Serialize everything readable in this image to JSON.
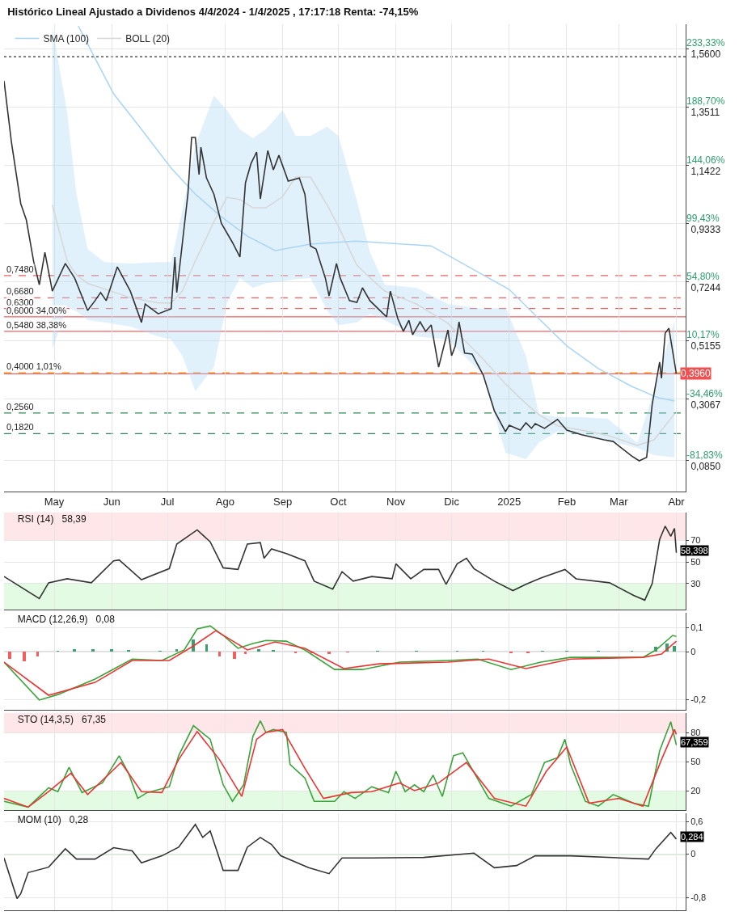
{
  "chart_data": [
    {
      "type": "line",
      "title": "Histórico Lineal Ajustado a Dividenos 4/4/2024 - 1/4/2025 , 17:17:18 Renta: -74,15%",
      "xlim": [
        "2024-04-04",
        "2025-04-06"
      ],
      "xticks": [
        {
          "value": "2024-05-01",
          "label": "May"
        },
        {
          "value": "2024-06-01",
          "label": "Jun"
        },
        {
          "value": "2024-07-01",
          "label": "Jul"
        },
        {
          "value": "2024-08-01",
          "label": "Ago"
        },
        {
          "value": "2024-09-01",
          "label": "Sep"
        },
        {
          "value": "2024-10-01",
          "label": "Oct"
        },
        {
          "value": "2024-11-01",
          "label": "Nov"
        },
        {
          "value": "2024-12-01",
          "label": "Dic"
        },
        {
          "value": "2025-01-01",
          "label": "2025"
        },
        {
          "value": "2025-02-01",
          "label": "Feb"
        },
        {
          "value": "2025-03-01",
          "label": "Mar"
        },
        {
          "value": "2025-04-01",
          "label": "Abr"
        }
      ],
      "ylim": [
        -0.025,
        1.647
      ],
      "yticks": [
        {
          "value": 0.085,
          "label": "0,0850"
        },
        {
          "value": 0.3067,
          "label": "0,3067"
        },
        {
          "value": 0.5155,
          "label": "0,5155"
        },
        {
          "value": 0.7244,
          "label": "0,7244"
        },
        {
          "value": 0.9333,
          "label": "0,9333"
        },
        {
          "value": 1.1422,
          "label": "1,1422"
        },
        {
          "value": 1.3511,
          "label": "1,3511"
        },
        {
          "value": 1.56,
          "label": "1,5600"
        }
      ],
      "y2lim": [
        -105.34,
        251.9
      ],
      "y2ticks": [
        {
          "value": -81.83,
          "label": "-81,83%"
        },
        {
          "value": -34.46,
          "label": "-34,46%"
        },
        {
          "value": 10.17,
          "label": "10,17%"
        },
        {
          "value": 54.8,
          "label": "54,80%"
        },
        {
          "value": 99.43,
          "label": "99,43%"
        },
        {
          "value": 144.06,
          "label": "144,06%"
        },
        {
          "value": 188.7,
          "label": "188,70%"
        },
        {
          "value": 233.33,
          "label": "233,33%"
        }
      ],
      "grid": true,
      "legend": "top left",
      "series": [
        {
          "name": "BOLL (20)",
          "color": "#d6d6d6",
          "x": [
            "2024-04-30",
            "2024-05-08",
            "2024-05-13",
            "2024-05-19",
            "2024-05-28",
            "2024-06-11",
            "2024-06-26",
            "2024-07-03",
            "2024-07-09",
            "2024-07-16",
            "2024-07-26",
            "2024-08-02",
            "2024-08-09",
            "2024-08-16",
            "2024-08-23",
            "2024-09-01",
            "2024-09-08",
            "2024-09-16",
            "2024-09-25",
            "2024-10-01",
            "2024-10-11",
            "2024-10-18",
            "2024-10-26",
            "2024-11-12",
            "2024-11-29",
            "2024-12-18",
            "2024-12-30",
            "2025-01-10",
            "2025-01-17",
            "2025-01-27",
            "2025-02-09",
            "2025-02-23",
            "2025-03-11",
            "2025-03-20",
            "2025-03-31"
          ],
          "values": [
            1.0,
            0.8,
            0.75,
            0.72,
            0.7,
            0.669,
            0.65,
            0.65,
            0.692,
            0.8,
            0.94,
            1.028,
            1.02,
            0.99,
            0.99,
            1.03,
            1.1,
            1.1,
            1.0,
            0.924,
            0.785,
            0.74,
            0.692,
            0.646,
            0.577,
            0.449,
            0.36,
            0.29,
            0.25,
            0.21,
            0.195,
            0.176,
            0.14,
            0.16,
            0.253
          ],
          "upper": [
            1.64,
            1.33,
            1.039,
            0.843,
            0.796,
            0.791,
            0.796,
            0.796,
            0.98,
            1.213,
            1.392,
            1.34,
            1.27,
            1.24,
            1.271,
            1.34,
            1.248,
            1.248,
            1.28,
            1.248,
            1.016,
            0.831,
            0.715,
            0.704,
            0.646,
            0.629,
            0.634,
            0.461,
            0.253,
            0.241,
            0.241,
            0.235,
            0.149,
            0.334,
            0.588
          ],
          "lower": [
            0.484,
            0.634,
            0.62,
            0.588,
            0.58,
            0.565,
            0.53,
            0.519,
            0.461,
            0.334,
            0.42,
            0.65,
            0.739,
            0.704,
            0.72,
            0.727,
            0.735,
            0.739,
            0.623,
            0.57,
            0.58,
            0.611,
            0.588,
            0.53,
            0.519,
            0.392,
            0.114,
            0.091,
            0.15,
            0.19,
            0.178,
            0.158,
            0.131,
            0.105,
            0.097
          ]
        },
        {
          "name": "SMA (100)",
          "color": "#a9d5f5",
          "x": [
            "2024-05-14",
            "2024-05-23",
            "2024-06-02",
            "2024-06-17",
            "2024-07-03",
            "2024-07-16",
            "2024-07-30",
            "2024-08-13",
            "2024-08-28",
            "2024-09-16",
            "2024-10-10",
            "2024-10-16",
            "2024-11-20",
            "2024-12-18",
            "2025-01-01",
            "2025-01-16",
            "2025-02-01",
            "2025-02-18",
            "2025-03-08",
            "2025-03-22",
            "2025-03-31"
          ],
          "values": [
            1.641,
            1.525,
            1.398,
            1.271,
            1.132,
            1.039,
            0.958,
            0.889,
            0.837,
            0.86,
            0.871,
            0.869,
            0.854,
            0.75,
            0.698,
            0.6,
            0.496,
            0.415,
            0.351,
            0.311,
            0.299
          ]
        },
        {
          "color": "#333333",
          "x": [
            "2024-04-04",
            "2024-04-08",
            "2024-04-13",
            "2024-04-16",
            "2024-04-20",
            "2024-04-23",
            "2024-04-26",
            "2024-04-30",
            "2024-05-07",
            "2024-05-12",
            "2024-05-19",
            "2024-05-23",
            "2024-05-26",
            "2024-05-29",
            "2024-06-04",
            "2024-06-11",
            "2024-06-17",
            "2024-06-19",
            "2024-06-26",
            "2024-07-03",
            "2024-07-05",
            "2024-07-06",
            "2024-07-12",
            "2024-07-14",
            "2024-07-16",
            "2024-07-18",
            "2024-07-19",
            "2024-07-22",
            "2024-07-26",
            "2024-07-30",
            "2024-08-05",
            "2024-08-09",
            "2024-08-12",
            "2024-08-15",
            "2024-08-18",
            "2024-08-20",
            "2024-08-24",
            "2024-08-27",
            "2024-08-30",
            "2024-09-04",
            "2024-09-10",
            "2024-09-13",
            "2024-09-16",
            "2024-09-19",
            "2024-09-24",
            "2024-09-26",
            "2024-09-30",
            "2024-10-02",
            "2024-10-07",
            "2024-10-11",
            "2024-10-14",
            "2024-10-18",
            "2024-10-26",
            "2024-10-27",
            "2024-10-29",
            "2024-11-02",
            "2024-11-05",
            "2024-11-08",
            "2024-11-10",
            "2024-11-14",
            "2024-11-17",
            "2024-11-20",
            "2024-11-24",
            "2024-11-29",
            "2024-12-01",
            "2024-12-03",
            "2024-12-05",
            "2024-12-08",
            "2024-12-12",
            "2024-12-18",
            "2024-12-24",
            "2024-12-30",
            "2025-01-01",
            "2025-01-07",
            "2025-01-10",
            "2025-01-13",
            "2025-01-15",
            "2025-01-20",
            "2025-01-27",
            "2025-02-01",
            "2025-02-09",
            "2025-02-21",
            "2025-02-26",
            "2025-03-08",
            "2025-03-12",
            "2025-03-16",
            "2025-03-19",
            "2025-03-23",
            "2025-03-24",
            "2025-03-26",
            "2025-03-28",
            "2025-04-01"
          ],
          "values": [
            1.444,
            1.224,
            1.005,
            0.947,
            0.796,
            0.715,
            0.831,
            0.692,
            0.791,
            0.739,
            0.623,
            0.658,
            0.687,
            0.658,
            0.779,
            0.692,
            0.58,
            0.646,
            0.611,
            0.629,
            0.814,
            0.687,
            1.039,
            1.242,
            1.242,
            1.109,
            1.207,
            1.097,
            1.039,
            0.935,
            0.866,
            0.814,
            1.08,
            1.149,
            1.19,
            1.022,
            1.195,
            1.126,
            1.178,
            1.086,
            1.097,
            1.039,
            0.854,
            0.843,
            0.739,
            0.675,
            0.791,
            0.739,
            0.658,
            0.652,
            0.704,
            0.658,
            0.606,
            0.6,
            0.692,
            0.594,
            0.548,
            0.588,
            0.536,
            0.582,
            0.548,
            0.571,
            0.42,
            0.553,
            0.461,
            0.496,
            0.582,
            0.47,
            0.467,
            0.392,
            0.264,
            0.189,
            0.212,
            0.195,
            0.221,
            0.201,
            0.218,
            0.201,
            0.233,
            0.195,
            0.178,
            0.16,
            0.154,
            0.102,
            0.085,
            0.097,
            0.287,
            0.438,
            0.38,
            0.542,
            0.559,
            0.396
          ]
        }
      ],
      "ref_lines": [
        {
          "axis": "y",
          "value": 1.531,
          "color": "#333333",
          "line_style": "dotted"
        },
        {
          "axis": "y",
          "value": 0.748,
          "label": "0,7480",
          "color": "#f06060",
          "line_style": "dashed"
        },
        {
          "axis": "y",
          "value": 0.668,
          "label": "0,6680",
          "color": "#f06060",
          "line_style": "dashed"
        },
        {
          "axis": "y",
          "value": 0.63,
          "label": "0,6300",
          "color": "#f06060",
          "line_style": "dashed"
        },
        {
          "axis": "y",
          "value": 0.6,
          "label": "0,6000 34,00%",
          "color": "#f06060",
          "line_style": "solid"
        },
        {
          "axis": "y",
          "value": 0.548,
          "label": "0,5480 38,38%",
          "color": "#f06060",
          "line_style": "solid"
        },
        {
          "axis": "y",
          "value": 0.4,
          "label": "0,4000 1,01%",
          "color": "#ff8c00",
          "line_style": "dashed"
        },
        {
          "axis": "y",
          "value": 0.396,
          "color": "#f06060",
          "line_style": "solid"
        },
        {
          "axis": "y",
          "value": 0.256,
          "label": "0,2560",
          "color": "#2e8b57",
          "line_style": "dashed"
        },
        {
          "axis": "y",
          "value": 0.182,
          "label": "0,1820",
          "color": "#2e8b57",
          "line_style": "dashed"
        }
      ],
      "annotations": [
        {
          "text": "0,3960",
          "x": "2025-04-01",
          "y": 0.396
        }
      ]
    },
    {
      "type": "line",
      "title": "RSI (14)   58,39",
      "tick_labels": "y",
      "grid": true,
      "xlim": [
        "2024-04-04",
        "2025-04-06"
      ],
      "xticks": [
        {
          "value": "2024-05-01",
          "label": null
        },
        {
          "value": "2024-06-01",
          "label": null
        },
        {
          "value": "2024-07-01",
          "label": null
        },
        {
          "value": "2024-08-01",
          "label": null
        },
        {
          "value": "2024-09-01",
          "label": null
        },
        {
          "value": "2024-10-01",
          "label": null
        },
        {
          "value": "2024-11-01",
          "label": null
        },
        {
          "value": "2024-12-01",
          "label": null
        },
        {
          "value": "2025-01-01",
          "label": null
        },
        {
          "value": "2025-02-01",
          "label": null
        },
        {
          "value": "2025-03-01",
          "label": null
        },
        {
          "value": "2025-04-01",
          "label": null
        }
      ],
      "ylim": [
        6,
        95.5
      ],
      "yticks": [
        30,
        50,
        70
      ],
      "bands": [
        {
          "axis": "y",
          "from": 70,
          "to": 95.5,
          "color": "#ffe6e8"
        },
        {
          "axis": "y",
          "from": 6,
          "to": 30,
          "color": "#e2fbe2"
        }
      ],
      "series": [
        {
          "color": "#333333",
          "x": [
            "2024-04-04",
            "2024-04-23",
            "2024-04-28",
            "2024-05-08",
            "2024-05-21",
            "2024-06-02",
            "2024-06-05",
            "2024-06-17",
            "2024-07-02",
            "2024-07-06",
            "2024-07-17",
            "2024-07-24",
            "2024-07-31",
            "2024-08-08",
            "2024-08-13",
            "2024-08-20",
            "2024-08-22",
            "2024-08-26",
            "2024-09-03",
            "2024-09-13",
            "2024-09-18",
            "2024-09-28",
            "2024-10-03",
            "2024-10-09",
            "2024-10-19",
            "2024-10-30",
            "2024-11-01",
            "2024-11-09",
            "2024-11-16",
            "2024-11-24",
            "2024-11-28",
            "2024-12-04",
            "2024-12-09",
            "2024-12-13",
            "2024-12-24",
            "2025-01-03",
            "2025-01-10",
            "2025-01-18",
            "2025-01-31",
            "2025-02-06",
            "2025-02-24",
            "2025-03-09",
            "2025-03-15",
            "2025-03-19",
            "2025-03-23",
            "2025-03-26",
            "2025-03-29",
            "2025-03-31",
            "2025-04-01"
          ],
          "values": [
            36.5,
            16.2,
            30.7,
            34.4,
            30.7,
            51,
            51.8,
            33.6,
            43.8,
            66.4,
            79.5,
            68.5,
            44.5,
            43,
            66.4,
            67.8,
            53.3,
            62,
            57.6,
            51,
            32.2,
            24.9,
            40.9,
            32.2,
            36.5,
            34.4,
            48.2,
            34.4,
            43,
            43,
            29.3,
            48.2,
            53.3,
            43.8,
            32.2,
            23.5,
            29.3,
            35.1,
            43,
            34.4,
            30.7,
            19.1,
            14.7,
            30,
            70.7,
            83,
            73.6,
            80.9,
            58.4
          ]
        }
      ],
      "annotations": [
        {
          "text": "58,398",
          "x": "2025-04-01",
          "y": 58.398
        }
      ]
    },
    {
      "type": "line",
      "title": "MACD (12,26,9)   0,08",
      "tick_labels": "y",
      "grid": true,
      "xlim": [
        "2024-04-04",
        "2025-04-06"
      ],
      "xticks": [
        {
          "value": "2024-05-01",
          "label": null
        },
        {
          "value": "2024-06-01",
          "label": null
        },
        {
          "value": "2024-07-01",
          "label": null
        },
        {
          "value": "2024-08-01",
          "label": null
        },
        {
          "value": "2024-09-01",
          "label": null
        },
        {
          "value": "2024-10-01",
          "label": null
        },
        {
          "value": "2024-11-01",
          "label": null
        },
        {
          "value": "2024-12-01",
          "label": null
        },
        {
          "value": "2025-01-01",
          "label": null
        },
        {
          "value": "2025-02-01",
          "label": null
        },
        {
          "value": "2025-03-01",
          "label": null
        },
        {
          "value": "2025-04-01",
          "label": null
        }
      ],
      "ylim": [
        -0.244,
        0.163
      ],
      "yticks": [
        {
          "value": -0.2,
          "label": "-0,2"
        },
        0,
        {
          "value": 0.1,
          "label": "0,1"
        }
      ],
      "ref_lines": [
        {
          "axis": "y",
          "value": 0,
          "color": "#bbbbbb",
          "line_style": "solid"
        }
      ],
      "series": [
        {
          "type": "bar",
          "x": [
            "2024-04-07",
            "2024-04-15",
            "2024-04-22",
            "2024-05-03",
            "2024-05-12",
            "2024-05-22",
            "2024-06-01",
            "2024-06-10",
            "2024-06-27",
            "2024-07-06",
            "2024-07-15",
            "2024-07-22",
            "2024-07-29",
            "2024-08-06",
            "2024-08-12",
            "2024-08-19",
            "2024-08-27",
            "2024-09-08",
            "2024-09-17",
            "2024-09-26",
            "2024-10-06",
            "2024-10-22",
            "2024-11-12",
            "2024-12-04",
            "2024-12-18",
            "2025-01-02",
            "2025-01-11",
            "2025-01-19",
            "2025-02-01",
            "2025-02-18",
            "2025-03-08",
            "2025-03-21",
            "2025-03-27",
            "2025-03-31"
          ],
          "values": [
            -0.03,
            -0.04,
            -0.02,
            0.005,
            0.01,
            0.01,
            0.012,
            0.008,
            0.004,
            0.01,
            0.05,
            0.03,
            -0.02,
            -0.03,
            -0.01,
            0.012,
            0.008,
            -0.005,
            -0.008,
            -0.01,
            -0.004,
            0.003,
            0.003,
            0.004,
            0.002,
            -0.006,
            -0.008,
            0.003,
            0.004,
            0.002,
            0.002,
            0.02,
            0.035,
            0.025
          ],
          "colors": [
            "#f06060",
            "#f06060",
            "#f06060",
            "#3c9d6e",
            "#3c9d6e",
            "#3c9d6e",
            "#3c9d6e",
            "#3c9d6e",
            "#3c9d6e",
            "#3c9d6e",
            "#3c9d6e",
            "#3c9d6e",
            "#f06060",
            "#f06060",
            "#f06060",
            "#3c9d6e",
            "#3c9d6e",
            "#f06060",
            "#f06060",
            "#f06060",
            "#f06060",
            "#3c9d6e",
            "#3c9d6e",
            "#3c9d6e",
            "#3c9d6e",
            "#f06060",
            "#f06060",
            "#3c9d6e",
            "#3c9d6e",
            "#3c9d6e",
            "#3c9d6e",
            "#3c9d6e",
            "#3c9d6e",
            "#3c9d6e"
          ]
        },
        {
          "color": "#3aa33a",
          "x": [
            "2024-04-04",
            "2024-04-23",
            "2024-05-03",
            "2024-05-23",
            "2024-06-12",
            "2024-06-28",
            "2024-07-10",
            "2024-07-17",
            "2024-07-24",
            "2024-07-31",
            "2024-08-08",
            "2024-08-16",
            "2024-08-23",
            "2024-09-03",
            "2024-09-13",
            "2024-09-29",
            "2024-10-14",
            "2024-11-03",
            "2024-11-29",
            "2024-12-15",
            "2025-01-02",
            "2025-01-18",
            "2025-02-03",
            "2025-03-14",
            "2025-03-21",
            "2025-03-30",
            "2025-04-01"
          ],
          "values": [
            -0.044,
            -0.203,
            -0.18,
            -0.115,
            -0.031,
            -0.037,
            0.007,
            0.095,
            0.108,
            0.068,
            0.014,
            0.034,
            0.047,
            0.044,
            0.007,
            -0.075,
            -0.075,
            -0.044,
            -0.037,
            -0.031,
            -0.075,
            -0.044,
            -0.024,
            -0.024,
            0.007,
            0.068,
            0.064
          ]
        },
        {
          "color": "#ee3333",
          "x": [
            "2024-04-04",
            "2024-04-28",
            "2024-05-23",
            "2024-06-12",
            "2024-07-02",
            "2024-07-15",
            "2024-07-27",
            "2024-08-13",
            "2024-08-28",
            "2024-09-13",
            "2024-10-04",
            "2024-10-23",
            "2024-11-29",
            "2024-12-21",
            "2025-01-10",
            "2025-02-03",
            "2025-03-14",
            "2025-03-24",
            "2025-04-01"
          ],
          "values": [
            -0.044,
            -0.183,
            -0.129,
            -0.037,
            -0.037,
            0.024,
            0.088,
            0.007,
            0.041,
            0.014,
            -0.071,
            -0.051,
            -0.044,
            -0.031,
            -0.071,
            -0.031,
            -0.024,
            -0.01,
            0.044
          ]
        }
      ]
    },
    {
      "type": "line",
      "title": "STO (14,3,5)   67,35",
      "tick_labels": "y",
      "grid": true,
      "xlim": [
        "2024-04-04",
        "2025-04-06"
      ],
      "xticks": [
        {
          "value": "2024-05-01",
          "label": null
        },
        {
          "value": "2024-06-01",
          "label": null
        },
        {
          "value": "2024-07-01",
          "label": null
        },
        {
          "value": "2024-08-01",
          "label": null
        },
        {
          "value": "2024-09-01",
          "label": null
        },
        {
          "value": "2024-10-01",
          "label": null
        },
        {
          "value": "2024-11-01",
          "label": null
        },
        {
          "value": "2024-12-01",
          "label": null
        },
        {
          "value": "2025-01-01",
          "label": null
        },
        {
          "value": "2025-02-01",
          "label": null
        },
        {
          "value": "2025-03-01",
          "label": null
        },
        {
          "value": "2025-04-01",
          "label": null
        }
      ],
      "ylim": [
        0,
        100
      ],
      "yticks": [
        20,
        50,
        80
      ],
      "bands": [
        {
          "axis": "y",
          "from": 80,
          "to": 100,
          "color": "#ffe6e8"
        },
        {
          "axis": "y",
          "from": 0,
          "to": 20,
          "color": "#e2fbe2"
        }
      ],
      "series": [
        {
          "color": "#3aa33a",
          "x": [
            "2024-04-04",
            "2024-04-17",
            "2024-04-28",
            "2024-05-03",
            "2024-05-09",
            "2024-05-16",
            "2024-05-27",
            "2024-06-05",
            "2024-06-10",
            "2024-06-15",
            "2024-06-20",
            "2024-07-02",
            "2024-07-07",
            "2024-07-15",
            "2024-07-24",
            "2024-07-31",
            "2024-08-05",
            "2024-08-11",
            "2024-08-16",
            "2024-08-20",
            "2024-08-23",
            "2024-08-27",
            "2024-09-03",
            "2024-09-05",
            "2024-09-13",
            "2024-09-18",
            "2024-09-29",
            "2024-10-04",
            "2024-10-10",
            "2024-10-19",
            "2024-10-28",
            "2024-11-01",
            "2024-11-06",
            "2024-11-11",
            "2024-11-16",
            "2024-11-21",
            "2024-11-26",
            "2024-12-02",
            "2024-12-07",
            "2024-12-21",
            "2025-01-02",
            "2025-01-13",
            "2025-01-20",
            "2025-01-27",
            "2025-01-31",
            "2025-02-03",
            "2025-02-11",
            "2025-02-18",
            "2025-02-26",
            "2025-03-09",
            "2025-03-17",
            "2025-03-23",
            "2025-03-29",
            "2025-04-01"
          ],
          "values": [
            9,
            3,
            23,
            19,
            44,
            18,
            28,
            56,
            38,
            12,
            18,
            24,
            56,
            87,
            73,
            26,
            9,
            26,
            76,
            92,
            80,
            83,
            80,
            47,
            33,
            9,
            9,
            19,
            12,
            24,
            18,
            40,
            19,
            26,
            19,
            36,
            14,
            56,
            59,
            12,
            4,
            16,
            49,
            54,
            73,
            47,
            9,
            4,
            16,
            7,
            4,
            61,
            91,
            67
          ]
        },
        {
          "color": "#ee3333",
          "x": [
            "2024-04-04",
            "2024-04-17",
            "2024-04-28",
            "2024-05-10",
            "2024-05-19",
            "2024-06-06",
            "2024-06-17",
            "2024-06-28",
            "2024-07-07",
            "2024-07-17",
            "2024-07-29",
            "2024-08-10",
            "2024-08-18",
            "2024-08-23",
            "2024-09-01",
            "2024-09-13",
            "2024-09-23",
            "2024-10-08",
            "2024-10-19",
            "2024-11-03",
            "2024-11-11",
            "2024-11-24",
            "2024-12-09",
            "2024-12-24",
            "2025-01-10",
            "2025-01-21",
            "2025-02-01",
            "2025-02-13",
            "2025-03-01",
            "2025-03-14",
            "2025-03-24",
            "2025-03-31",
            "2025-04-01"
          ],
          "values": [
            12,
            3,
            19,
            38,
            16,
            49,
            19,
            18,
            52,
            81,
            52,
            14,
            73,
            80,
            83,
            43,
            12,
            18,
            19,
            28,
            20,
            28,
            49,
            12,
            4,
            40,
            65,
            7,
            12,
            4,
            52,
            83,
            78
          ]
        }
      ],
      "annotations": [
        {
          "text": "67,359",
          "x": "2025-04-01",
          "y": 67.359
        }
      ]
    },
    {
      "type": "line",
      "title": "MOM (10)   0,28",
      "tick_labels": "y",
      "grid": true,
      "xlim": [
        "2024-04-04",
        "2025-04-06"
      ],
      "xticks": [
        {
          "value": "2024-05-01",
          "label": null
        },
        {
          "value": "2024-06-01",
          "label": null
        },
        {
          "value": "2024-07-01",
          "label": null
        },
        {
          "value": "2024-08-01",
          "label": null
        },
        {
          "value": "2024-09-01",
          "label": null
        },
        {
          "value": "2024-10-01",
          "label": null
        },
        {
          "value": "2024-11-01",
          "label": null
        },
        {
          "value": "2024-12-01",
          "label": null
        },
        {
          "value": "2025-01-01",
          "label": null
        },
        {
          "value": "2025-02-01",
          "label": null
        },
        {
          "value": "2025-03-01",
          "label": null
        },
        {
          "value": "2025-04-01",
          "label": null
        }
      ],
      "ylim": [
        -1.037,
        0.756
      ],
      "yticks": [
        {
          "value": -0.8,
          "label": "-0,8"
        },
        0,
        {
          "value": 0.6,
          "label": "0,6"
        }
      ],
      "ref_lines": [
        {
          "axis": "y",
          "value": 0,
          "color": "#66bb66",
          "line_style": "solid"
        }
      ],
      "series": [
        {
          "color": "#333333",
          "x": [
            "2024-04-04",
            "2024-04-11",
            "2024-04-13",
            "2024-04-17",
            "2024-04-28",
            "2024-05-07",
            "2024-05-13",
            "2024-05-23",
            "2024-06-02",
            "2024-06-12",
            "2024-06-17",
            "2024-06-28",
            "2024-07-07",
            "2024-07-16",
            "2024-07-20",
            "2024-07-24",
            "2024-07-28",
            "2024-07-31",
            "2024-08-08",
            "2024-08-13",
            "2024-08-20",
            "2024-08-26",
            "2024-08-31",
            "2024-09-15",
            "2024-09-26",
            "2024-10-03",
            "2024-10-19",
            "2024-11-16",
            "2024-12-13",
            "2024-12-24",
            "2025-01-05",
            "2025-01-15",
            "2025-02-03",
            "2025-03-17",
            "2025-03-21",
            "2025-03-29",
            "2025-04-01"
          ],
          "values": [
            -0.07,
            -0.82,
            -0.73,
            -0.34,
            -0.24,
            0.1,
            -0.09,
            -0.09,
            0.12,
            0.06,
            -0.16,
            -0.03,
            0.13,
            0.55,
            0.31,
            0.43,
            0.02,
            -0.3,
            -0.3,
            0.13,
            0.31,
            0.18,
            -0.03,
            -0.25,
            -0.36,
            -0.07,
            -0.07,
            -0.06,
            0.02,
            -0.25,
            -0.21,
            -0.03,
            -0.03,
            -0.09,
            0.1,
            0.4,
            0.28
          ]
        }
      ],
      "annotations": [
        {
          "text": "0,284",
          "x": "2025-04-01",
          "y": 0.284
        }
      ]
    }
  ]
}
